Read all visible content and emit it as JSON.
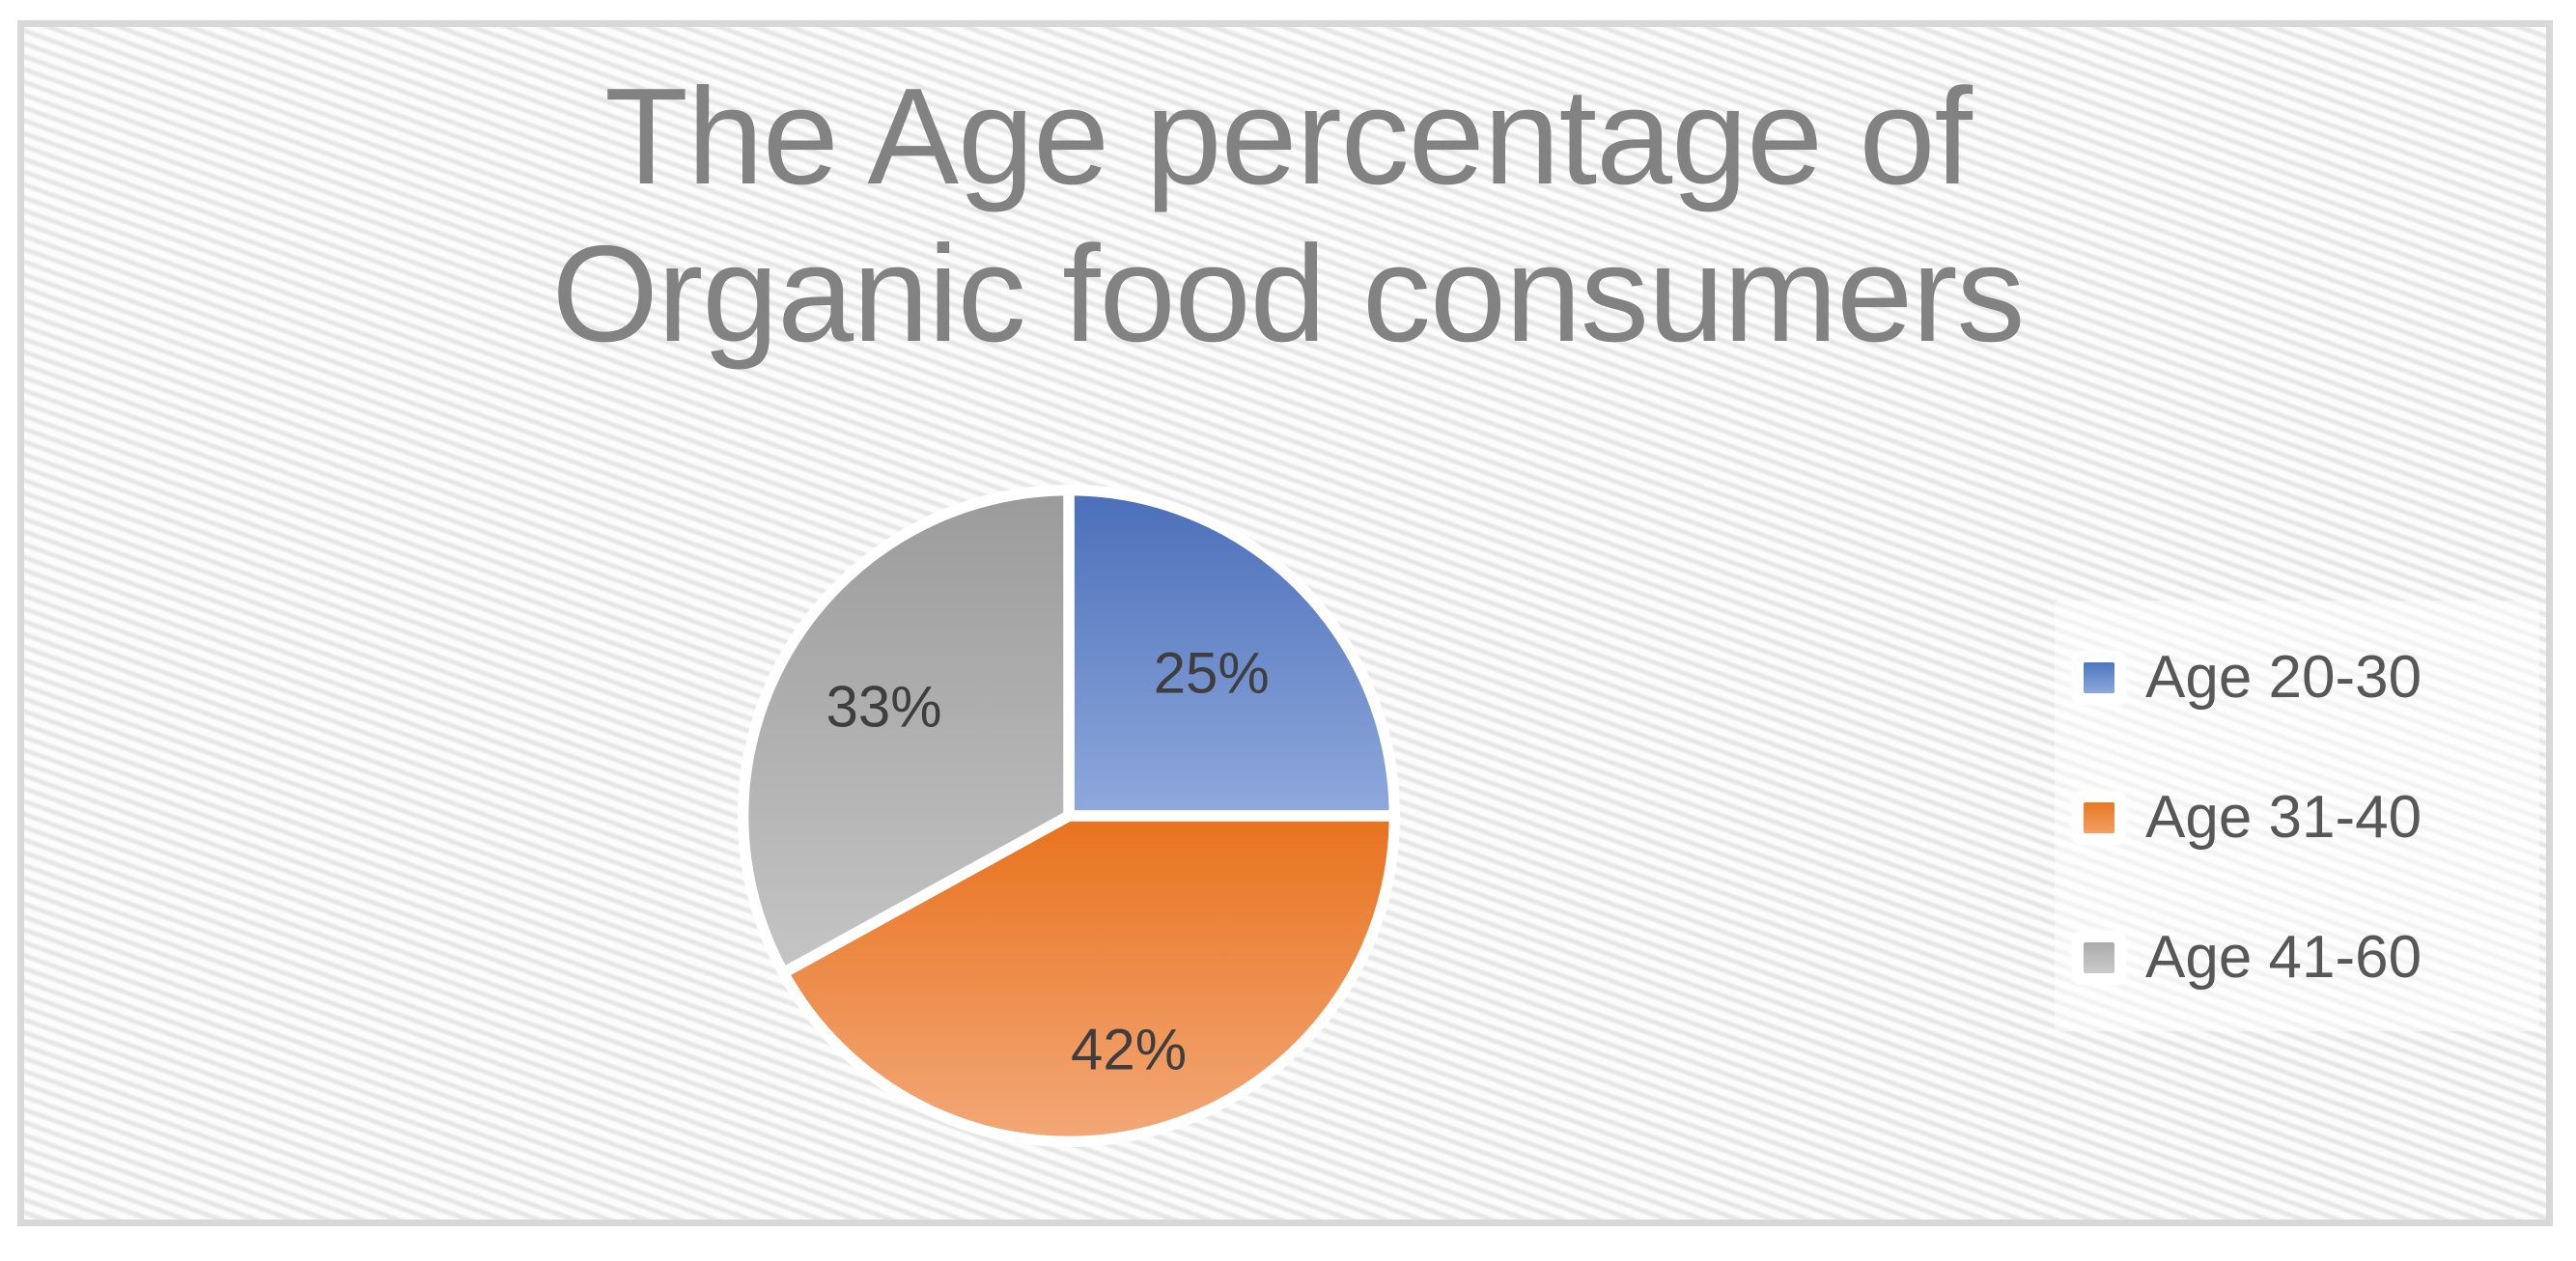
{
  "window": {
    "background": "#FFFFFF",
    "border_color": "#D8D8D8",
    "hatch_base_color": "#FCFCFC",
    "hatch_stripe_color": "#E6E6E6"
  },
  "title": {
    "line1": "The Age percentage of",
    "line2": "Organic food consumers",
    "color": "#828282"
  },
  "chart_data": {
    "type": "pie",
    "title": "The Age percentage of Organic food consumers",
    "categories": [
      "Age 20-30",
      "Age 31-40",
      "Age 41-60"
    ],
    "values": [
      25,
      42,
      33
    ],
    "data_labels": [
      "25%",
      "42%",
      "33%"
    ],
    "unit": "percent",
    "start_angle_deg": 0,
    "direction": "clockwise",
    "legend_position": "right",
    "grid": false,
    "label_color": "#3E3E3E",
    "legend_text_color": "#575757",
    "slice_border_color": "#FFFFFF",
    "base_colors": [
      "#4472C4",
      "#ED7D31",
      "#A5A5A5"
    ],
    "slice_gradients": [
      {
        "stops": [
          [
            0,
            "#4A6EB9"
          ],
          [
            0.5,
            "#8FA9DC"
          ],
          [
            1,
            "#CBD6EE"
          ]
        ]
      },
      {
        "stops": [
          [
            0,
            "#D0660F"
          ],
          [
            0.5,
            "#E8721E"
          ],
          [
            1,
            "#F3A878"
          ]
        ]
      },
      {
        "stops": [
          [
            0,
            "#9B9B9B"
          ],
          [
            0.77,
            "#C6C6C6"
          ],
          [
            1,
            "#D5D5D5"
          ]
        ]
      }
    ],
    "legend_marker_gradients": [
      [
        "#4B76C0",
        "#8EA8DA"
      ],
      [
        "#E97820",
        "#F0A066"
      ],
      [
        "#ACACAC",
        "#CACACA"
      ]
    ]
  }
}
